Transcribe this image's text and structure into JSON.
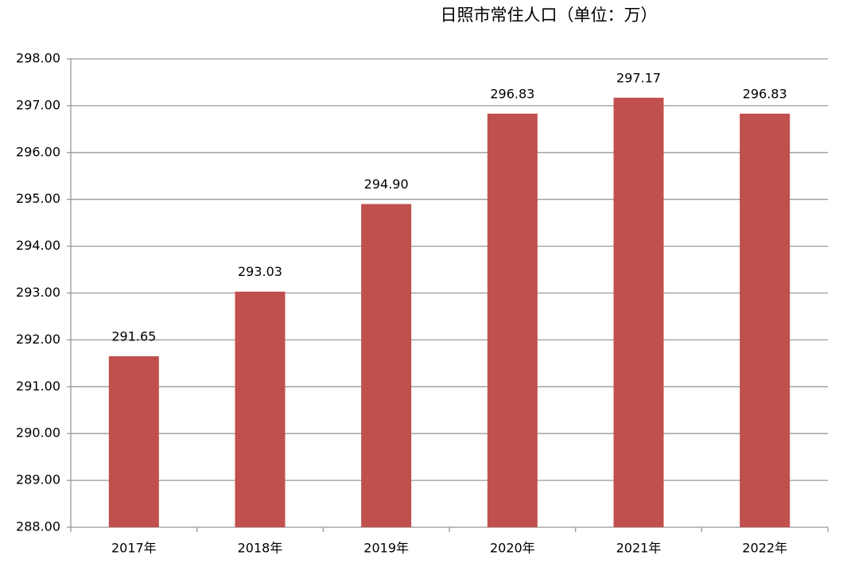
{
  "chart_data": {
    "type": "bar",
    "title": "日照市常住人口（单位：万）",
    "categories": [
      "2017年",
      "2018年",
      "2019年",
      "2020年",
      "2021年",
      "2022年"
    ],
    "values": [
      291.65,
      293.03,
      294.9,
      296.83,
      297.17,
      296.83
    ],
    "value_labels": [
      "291.65",
      "293.03",
      "294.90",
      "296.83",
      "297.17",
      "296.83"
    ],
    "color": "#c0504d",
    "ylim": [
      288,
      298
    ],
    "yticks": [
      {
        "value": 288,
        "label": "288.00"
      },
      {
        "value": 289,
        "label": "289.00"
      },
      {
        "value": 290,
        "label": "290.00"
      },
      {
        "value": 291,
        "label": "291.00"
      },
      {
        "value": 292,
        "label": "292.00"
      },
      {
        "value": 293,
        "label": "293.00"
      },
      {
        "value": 294,
        "label": "294.00"
      },
      {
        "value": 295,
        "label": "295.00"
      },
      {
        "value": 296,
        "label": "296.00"
      },
      {
        "value": 297,
        "label": "297.00"
      },
      {
        "value": 298,
        "label": "298.00"
      }
    ],
    "grid": true
  }
}
